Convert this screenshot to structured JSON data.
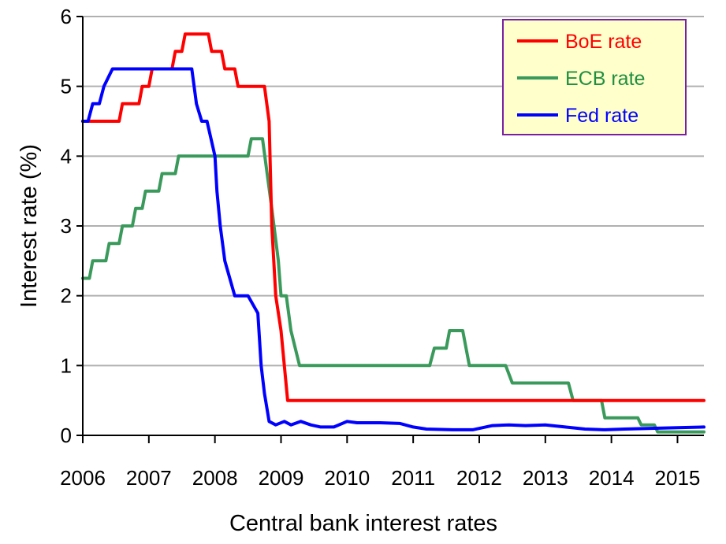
{
  "chart_data": {
    "type": "line",
    "title": "",
    "xlabel": "Central bank interest rates",
    "ylabel": "Interest rate (%)",
    "xlim": [
      2006.0,
      2015.4
    ],
    "ylim": [
      0,
      6
    ],
    "x_ticks": [
      "2006",
      "2007",
      "2008",
      "2009",
      "2010",
      "2011",
      "2012",
      "2013",
      "2014",
      "2015"
    ],
    "y_ticks": [
      "0",
      "1",
      "2",
      "3",
      "4",
      "5",
      "6"
    ],
    "grid": true,
    "legend_position": "top-right",
    "series": [
      {
        "name": "BoE rate",
        "color": "#ff0000",
        "points": [
          [
            2006.0,
            4.5
          ],
          [
            2006.55,
            4.5
          ],
          [
            2006.6,
            4.75
          ],
          [
            2006.85,
            4.75
          ],
          [
            2006.9,
            5.0
          ],
          [
            2007.0,
            5.0
          ],
          [
            2007.05,
            5.25
          ],
          [
            2007.35,
            5.25
          ],
          [
            2007.4,
            5.5
          ],
          [
            2007.5,
            5.5
          ],
          [
            2007.55,
            5.75
          ],
          [
            2007.9,
            5.75
          ],
          [
            2007.95,
            5.5
          ],
          [
            2008.1,
            5.5
          ],
          [
            2008.15,
            5.25
          ],
          [
            2008.3,
            5.25
          ],
          [
            2008.35,
            5.0
          ],
          [
            2008.75,
            5.0
          ],
          [
            2008.82,
            4.5
          ],
          [
            2008.86,
            3.0
          ],
          [
            2008.92,
            2.0
          ],
          [
            2009.0,
            1.5
          ],
          [
            2009.1,
            0.5
          ],
          [
            2015.4,
            0.5
          ]
        ]
      },
      {
        "name": "ECB rate",
        "color": "#3a9a5b",
        "points": [
          [
            2006.0,
            2.25
          ],
          [
            2006.1,
            2.25
          ],
          [
            2006.15,
            2.5
          ],
          [
            2006.35,
            2.5
          ],
          [
            2006.4,
            2.75
          ],
          [
            2006.55,
            2.75
          ],
          [
            2006.6,
            3.0
          ],
          [
            2006.75,
            3.0
          ],
          [
            2006.8,
            3.25
          ],
          [
            2006.9,
            3.25
          ],
          [
            2006.95,
            3.5
          ],
          [
            2007.15,
            3.5
          ],
          [
            2007.2,
            3.75
          ],
          [
            2007.4,
            3.75
          ],
          [
            2007.45,
            4.0
          ],
          [
            2008.5,
            4.0
          ],
          [
            2008.55,
            4.25
          ],
          [
            2008.72,
            4.25
          ],
          [
            2008.86,
            3.25
          ],
          [
            2008.96,
            2.5
          ],
          [
            2009.0,
            2.0
          ],
          [
            2009.08,
            2.0
          ],
          [
            2009.15,
            1.5
          ],
          [
            2009.28,
            1.0
          ],
          [
            2009.32,
            1.0
          ],
          [
            2011.25,
            1.0
          ],
          [
            2011.32,
            1.25
          ],
          [
            2011.5,
            1.25
          ],
          [
            2011.55,
            1.5
          ],
          [
            2011.75,
            1.5
          ],
          [
            2011.85,
            1.0
          ],
          [
            2012.4,
            1.0
          ],
          [
            2012.5,
            0.75
          ],
          [
            2013.35,
            0.75
          ],
          [
            2013.42,
            0.5
          ],
          [
            2013.85,
            0.5
          ],
          [
            2013.9,
            0.25
          ],
          [
            2014.4,
            0.25
          ],
          [
            2014.45,
            0.15
          ],
          [
            2014.65,
            0.15
          ],
          [
            2014.7,
            0.05
          ],
          [
            2015.4,
            0.05
          ]
        ]
      },
      {
        "name": "Fed rate",
        "color": "#0000ff",
        "points": [
          [
            2006.0,
            4.5
          ],
          [
            2006.08,
            4.5
          ],
          [
            2006.15,
            4.75
          ],
          [
            2006.25,
            4.75
          ],
          [
            2006.32,
            5.0
          ],
          [
            2006.45,
            5.25
          ],
          [
            2007.65,
            5.25
          ],
          [
            2007.72,
            4.75
          ],
          [
            2007.8,
            4.5
          ],
          [
            2007.88,
            4.5
          ],
          [
            2008.0,
            4.0
          ],
          [
            2008.03,
            3.5
          ],
          [
            2008.08,
            3.0
          ],
          [
            2008.15,
            2.5
          ],
          [
            2008.3,
            2.0
          ],
          [
            2008.42,
            2.0
          ],
          [
            2008.5,
            2.0
          ],
          [
            2008.65,
            1.75
          ],
          [
            2008.7,
            1.0
          ],
          [
            2008.75,
            0.6
          ],
          [
            2008.82,
            0.2
          ],
          [
            2008.92,
            0.15
          ],
          [
            2009.05,
            0.2
          ],
          [
            2009.15,
            0.15
          ],
          [
            2009.3,
            0.2
          ],
          [
            2009.45,
            0.15
          ],
          [
            2009.6,
            0.12
          ],
          [
            2009.8,
            0.12
          ],
          [
            2010.0,
            0.2
          ],
          [
            2010.15,
            0.18
          ],
          [
            2010.5,
            0.18
          ],
          [
            2010.8,
            0.17
          ],
          [
            2011.0,
            0.12
          ],
          [
            2011.2,
            0.09
          ],
          [
            2011.6,
            0.08
          ],
          [
            2011.9,
            0.08
          ],
          [
            2012.2,
            0.14
          ],
          [
            2012.45,
            0.15
          ],
          [
            2012.7,
            0.14
          ],
          [
            2013.0,
            0.15
          ],
          [
            2013.3,
            0.12
          ],
          [
            2013.6,
            0.09
          ],
          [
            2013.9,
            0.08
          ],
          [
            2014.2,
            0.09
          ],
          [
            2014.6,
            0.1
          ],
          [
            2015.0,
            0.11
          ],
          [
            2015.4,
            0.12
          ]
        ]
      }
    ]
  }
}
